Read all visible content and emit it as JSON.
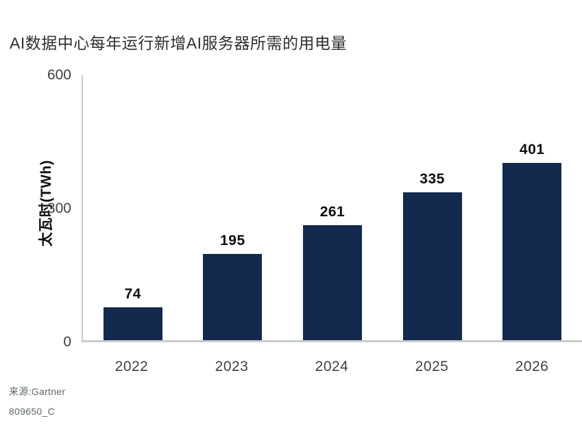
{
  "page": {
    "background": "#ffffff"
  },
  "chart_data": {
    "type": "bar",
    "title": "AI数据中心每年运行新增AI服务器所需的用电量",
    "categories": [
      "2022",
      "2023",
      "2024",
      "2025",
      "2026"
    ],
    "values": [
      74,
      195,
      261,
      335,
      401
    ],
    "xlabel": "",
    "ylabel": "太瓦时(TWh)",
    "yticks": [
      "600",
      "300",
      "0"
    ],
    "ylim": [
      0,
      600
    ],
    "grid": false,
    "legend": false,
    "value_labels_shown": true,
    "bar_color": "#13294e",
    "axis_color": "#c6caca",
    "value_label_color": "#0d0d0d",
    "tick_label_color": "#3f3f3f"
  },
  "footer": {
    "source": "来源:Gartner",
    "code": "809650_C"
  }
}
